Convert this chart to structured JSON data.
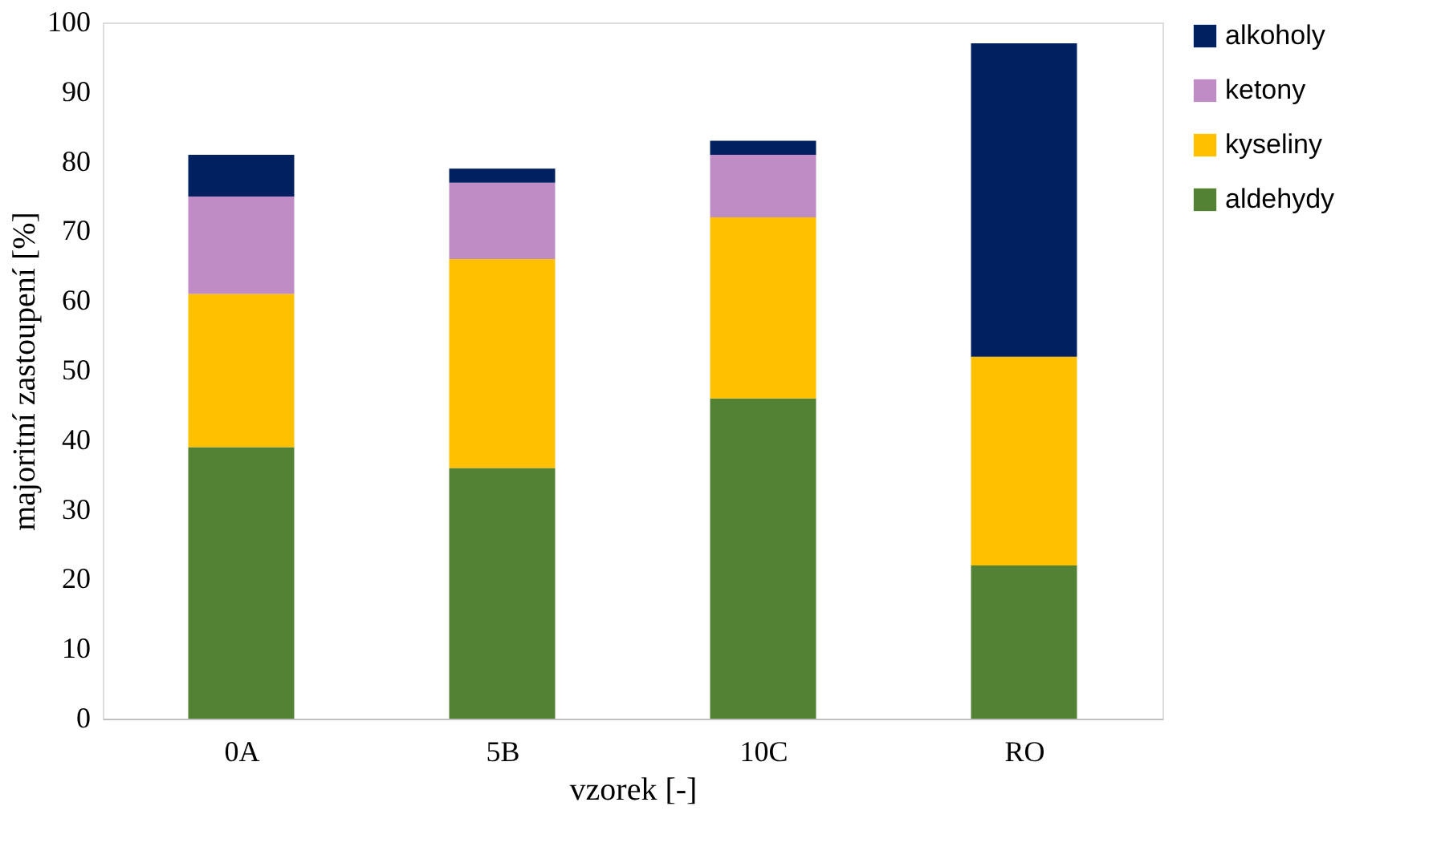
{
  "chart_data": {
    "type": "bar",
    "stacked": true,
    "xlabel": "vzorek [-]",
    "ylabel": "majoritní zastoupení [%]",
    "categories": [
      "0A",
      "5B",
      "10C",
      "RO"
    ],
    "series": [
      {
        "name": "aldehydy",
        "color": "#548235",
        "values": [
          39,
          36,
          46,
          22
        ]
      },
      {
        "name": "kyseliny",
        "color": "#ffc000",
        "values": [
          22,
          30,
          26,
          30
        ]
      },
      {
        "name": "ketony",
        "color": "#c08cc6",
        "values": [
          14,
          11,
          9,
          0
        ]
      },
      {
        "name": "alkoholy",
        "color": "#002060",
        "values": [
          6,
          2,
          2,
          45
        ]
      }
    ],
    "ylim": [
      0,
      100
    ],
    "yticks": [
      0,
      10,
      20,
      30,
      40,
      50,
      60,
      70,
      80,
      90,
      100
    ],
    "grid": false,
    "legend": "right"
  }
}
